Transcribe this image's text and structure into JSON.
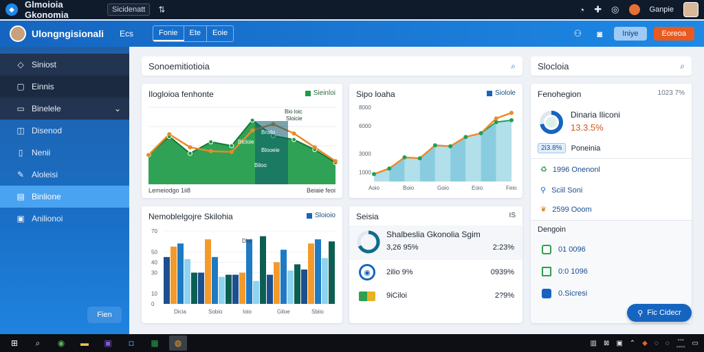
{
  "titlebar": {
    "app_title": "Glmoioia Gkonomia",
    "tab_label": "Sicidenatt",
    "icons": [
      "chat-icon",
      "plugin-icon",
      "settings-icon"
    ],
    "user_name": "Ganpie"
  },
  "header": {
    "title": "Ulongngisionali",
    "link": "Ecs",
    "tabs": [
      "Fonie",
      "Ete",
      "Eoie"
    ],
    "btn_primary": "Iniye",
    "btn_secondary": "Eoreoa"
  },
  "sidebar": {
    "items": [
      {
        "label": "Siniost",
        "icon": "diamond-icon"
      },
      {
        "label": "Einnis",
        "icon": "square-icon"
      },
      {
        "label": "Binelele",
        "icon": "folder-icon"
      },
      {
        "label": "Disenod",
        "icon": "chat-bubble-icon"
      },
      {
        "label": "Nenii",
        "icon": "note-icon"
      },
      {
        "label": "Aloleisi",
        "icon": "pen-icon"
      },
      {
        "label": "Binlione",
        "icon": "document-icon"
      },
      {
        "label": "Anilionoi",
        "icon": "calendar-icon"
      }
    ],
    "footer_button": "Fien"
  },
  "search_main": {
    "text": "Sonoemitiotioia"
  },
  "search_side": {
    "text": "Slocloia"
  },
  "card_area": {
    "title": "Ilogloioa fenhonte",
    "legend": "Sieinloi",
    "annotations": [
      "Bio loic",
      "Sloicie",
      "Bnslo",
      "Blcloie",
      "Blooeie",
      "Biloo"
    ],
    "footer_left": "Lemeiodgo 1ii8",
    "footer_right": "Beiaie feoi"
  },
  "card_line": {
    "title": "Sipo loaha",
    "legend": "Siolole",
    "yticks": [
      "8000",
      "6000",
      "3000",
      "1000"
    ],
    "xticks": [
      "Aoio",
      "Boio",
      "Goio",
      "Eoio",
      "Feio"
    ]
  },
  "card_bars": {
    "title": "Nemoblelgojre Skilohia",
    "legend": "Sloioio",
    "yticks": [
      "70",
      "50",
      "40",
      "30",
      "10",
      "0"
    ],
    "xticks": [
      "Dicia",
      "Sobio",
      "Ioio",
      "Giloe",
      "Sbiio"
    ],
    "annotation": "Dloi"
  },
  "card_stats": {
    "title": "Seisia",
    "close": "IS",
    "rows": [
      {
        "label": "Shalbeslia Gkonolia Sgim",
        "value": "3,26 95%",
        "right": "2:23%",
        "icon": "ring-icon"
      },
      {
        "label": "2ilio 9%",
        "value": "",
        "right": "0939%",
        "icon": "cycle-icon"
      },
      {
        "label": "9iCiloi",
        "value": "",
        "right": "2?9%",
        "icon": "battery-icon"
      }
    ]
  },
  "right_panel": {
    "title": "Fenohegion",
    "title_meta": "1023 7%",
    "donut_label": "Dinaria Iliconi",
    "donut_value": "13.3.5%",
    "pill": "2i3.8%",
    "pill_label": "Poneinia",
    "stats": [
      {
        "label": "1996 Onenonl",
        "color": "#2e9e4f",
        "icon": "recycle-icon"
      },
      {
        "label": "Sciil Soni",
        "color": "#1565c0",
        "icon": "pin-icon"
      },
      {
        "label": "2599 Ooom",
        "color": "#e0851f",
        "icon": "leaf-icon"
      }
    ],
    "section_title": "Dengoin",
    "list": [
      {
        "label": "01 0096",
        "icon": "home-icon",
        "color": "#2e9e4f"
      },
      {
        "label": "0:0 1096",
        "icon": "file-icon",
        "color": "#2e9e4f"
      },
      {
        "label": "0.Sicresi",
        "icon": "chart-icon",
        "color": "#1565c0"
      }
    ],
    "fab_label": "Fic Cidecr"
  },
  "chart_data": [
    {
      "type": "area",
      "title": "Ilogloioa fenhonte",
      "x": [
        0,
        1,
        2,
        3,
        4,
        5,
        6,
        7,
        8,
        9
      ],
      "series": [
        {
          "name": "Sieinloi",
          "values": [
            38,
            62,
            40,
            55,
            50,
            83,
            63,
            58,
            45,
            28
          ],
          "color": "#1e9a47"
        },
        {
          "values": [
            38,
            65,
            48,
            43,
            42,
            70,
            78,
            66,
            48,
            30
          ],
          "color": "#e88a2a"
        }
      ],
      "ylim": [
        0,
        100
      ]
    },
    {
      "type": "area",
      "title": "Sipo loaha",
      "categories": [
        "Aoio",
        "Boio",
        "Goio",
        "Eoio",
        "Feio"
      ],
      "x": [
        0,
        1,
        2,
        3,
        4,
        5,
        6,
        7,
        8,
        9
      ],
      "series": [
        {
          "name": "Siolole",
          "values": [
            800,
            1400,
            2600,
            2500,
            3900,
            3800,
            4800,
            5200,
            6400,
            6600
          ],
          "color": "#3ba7c9"
        },
        {
          "values": [
            800,
            1400,
            2600,
            2500,
            3900,
            3800,
            4800,
            5200,
            6800,
            7400
          ],
          "color": "#f08a2a"
        }
      ],
      "ylim": [
        0,
        8000
      ]
    },
    {
      "type": "bar",
      "title": "Nemoblelgojre Skilohia",
      "categories": [
        "Dicia",
        "Sobio",
        "Ioio",
        "Giloe",
        "Sbiio"
      ],
      "series": [
        {
          "values": [
            45,
            30,
            28,
            28,
            33
          ],
          "color": "#1b4f8f"
        },
        {
          "values": [
            55,
            62,
            30,
            40,
            58
          ],
          "color": "#f39a2a"
        },
        {
          "values": [
            58,
            45,
            62,
            52,
            62
          ],
          "color": "#1f7ac4"
        },
        {
          "values": [
            43,
            26,
            22,
            32,
            44
          ],
          "color": "#8ed3ef"
        },
        {
          "values": [
            30,
            28,
            65,
            38,
            60
          ],
          "color": "#0d5e52"
        }
      ],
      "ylim": [
        0,
        70
      ]
    },
    {
      "type": "pie",
      "title": "Dinaria Iliconi",
      "values": [
        72,
        28
      ],
      "labels": [
        "",
        ""
      ],
      "colors": [
        "#1565c0",
        "#dfe7f2"
      ]
    }
  ]
}
